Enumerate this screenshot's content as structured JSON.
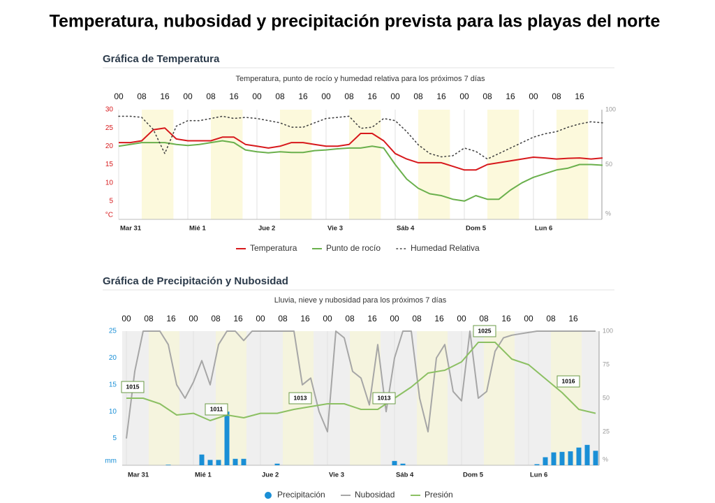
{
  "page_title": "Temperatura, nubosidad  y precipitación prevista para las playas del norte",
  "chart_data": [
    {
      "type": "line",
      "title": "Gráfica de Temperatura",
      "subtitle": "Temperatura, punto de rocío y humedad relativa para los próximos 7 días",
      "xlim": [
        0,
        168
      ],
      "xticks": [
        {
          "value": 0,
          "label": "00"
        },
        {
          "value": 8,
          "label": "08"
        },
        {
          "value": 16,
          "label": "16"
        },
        {
          "value": 24,
          "label": "00"
        },
        {
          "value": 32,
          "label": "08"
        },
        {
          "value": 40,
          "label": "16"
        },
        {
          "value": 48,
          "label": "00"
        },
        {
          "value": 56,
          "label": "08"
        },
        {
          "value": 64,
          "label": "16"
        },
        {
          "value": 72,
          "label": "00"
        },
        {
          "value": 80,
          "label": "08"
        },
        {
          "value": 88,
          "label": "16"
        },
        {
          "value": 96,
          "label": "00"
        },
        {
          "value": 104,
          "label": "08"
        },
        {
          "value": 112,
          "label": "16"
        },
        {
          "value": 120,
          "label": "00"
        },
        {
          "value": 128,
          "label": "08"
        },
        {
          "value": 136,
          "label": "16"
        },
        {
          "value": 144,
          "label": "00"
        },
        {
          "value": 152,
          "label": "08"
        },
        {
          "value": 160,
          "label": "16"
        }
      ],
      "dates": [
        {
          "value": 0,
          "label": "Mar 31"
        },
        {
          "value": 24,
          "label": "Mié 1"
        },
        {
          "value": 48,
          "label": "Jue 2"
        },
        {
          "value": 72,
          "label": "Vie 3"
        },
        {
          "value": 96,
          "label": "Sáb 4"
        },
        {
          "value": 120,
          "label": "Dom 5"
        },
        {
          "value": 144,
          "label": "Lun 6"
        }
      ],
      "ylim": [
        0,
        30
      ],
      "yticks": [
        {
          "value": 0,
          "label": "°C"
        },
        5,
        10,
        15,
        20,
        25,
        30
      ],
      "y2lim": [
        0,
        100
      ],
      "y2ticks": [
        {
          "value": 0,
          "label": "%"
        },
        50,
        100
      ],
      "shaded_bands": [
        [
          8,
          19
        ],
        [
          32,
          43
        ],
        [
          56,
          67
        ],
        [
          80,
          91
        ],
        [
          104,
          115
        ],
        [
          128,
          139
        ],
        [
          152,
          163
        ]
      ],
      "band_color": "#fcf9dc",
      "legend": "bottom",
      "series": [
        {
          "name": "Temperatura",
          "type": "line",
          "color": "#d7191c",
          "x": [
            0,
            4,
            8,
            12,
            16,
            20,
            24,
            28,
            32,
            36,
            40,
            44,
            48,
            52,
            56,
            60,
            64,
            68,
            72,
            76,
            80,
            84,
            88,
            92,
            96,
            100,
            104,
            108,
            112,
            116,
            120,
            124,
            128,
            132,
            136,
            140,
            144,
            148,
            152,
            156,
            160,
            164,
            168
          ],
          "values": [
            21,
            21,
            21.5,
            24.5,
            25,
            22,
            21.5,
            21.5,
            21.5,
            22.5,
            22.5,
            20.5,
            20,
            19.5,
            20,
            21,
            21,
            20.5,
            20,
            20,
            20.5,
            23.5,
            23.5,
            21.5,
            18,
            16.5,
            15.5,
            15.5,
            15.5,
            14.5,
            13.5,
            13.5,
            15,
            15.5,
            16,
            16.5,
            17,
            16.8,
            16.5,
            16.7,
            16.8,
            16.5,
            16.8
          ]
        },
        {
          "name": "Punto de rocío",
          "type": "line",
          "color": "#6ab04c",
          "x": [
            0,
            4,
            8,
            12,
            16,
            20,
            24,
            28,
            32,
            36,
            40,
            44,
            48,
            52,
            56,
            60,
            64,
            68,
            72,
            76,
            80,
            84,
            88,
            92,
            96,
            100,
            104,
            108,
            112,
            116,
            120,
            124,
            128,
            132,
            136,
            140,
            144,
            148,
            152,
            156,
            160,
            164,
            168
          ],
          "values": [
            20,
            20.5,
            21,
            21,
            21,
            20.5,
            20.2,
            20.5,
            21,
            21.5,
            21,
            19,
            18.5,
            18.2,
            18.5,
            18.3,
            18.3,
            18.8,
            19,
            19.3,
            19.5,
            19.5,
            20,
            19.5,
            15,
            11,
            8.5,
            7,
            6.5,
            5.5,
            5,
            6.5,
            5.5,
            5.5,
            8,
            10,
            11.5,
            12.5,
            13.5,
            14,
            15,
            15,
            14.8
          ]
        },
        {
          "name": "Humedad Relativa",
          "type": "line",
          "color": "#444444",
          "dash": "dotted",
          "axis": "y2",
          "x": [
            0,
            4,
            8,
            12,
            16,
            20,
            24,
            28,
            32,
            36,
            40,
            44,
            48,
            52,
            56,
            60,
            64,
            68,
            72,
            76,
            80,
            84,
            88,
            92,
            96,
            100,
            104,
            108,
            112,
            116,
            120,
            124,
            128,
            132,
            136,
            140,
            144,
            148,
            152,
            156,
            160,
            164,
            168
          ],
          "values": [
            94,
            94,
            93,
            82,
            60,
            85,
            90,
            90,
            92,
            94,
            92,
            93,
            92,
            90,
            88,
            84,
            84,
            88,
            92,
            93,
            94,
            83,
            84,
            92,
            90,
            80,
            68,
            60,
            57,
            58,
            65,
            62,
            55,
            60,
            65,
            70,
            75,
            78,
            80,
            84,
            87,
            89,
            88
          ]
        }
      ]
    },
    {
      "type": "combo",
      "title": "Gráfica de Precipitación y Nubosidad",
      "subtitle": "Lluvia, nieve y nubosidad para los próximos 7 días",
      "xlim": [
        0,
        168
      ],
      "xticks": [
        {
          "value": 0,
          "label": "00"
        },
        {
          "value": 8,
          "label": "08"
        },
        {
          "value": 16,
          "label": "16"
        },
        {
          "value": 24,
          "label": "00"
        },
        {
          "value": 32,
          "label": "08"
        },
        {
          "value": 40,
          "label": "16"
        },
        {
          "value": 48,
          "label": "00"
        },
        {
          "value": 56,
          "label": "08"
        },
        {
          "value": 64,
          "label": "16"
        },
        {
          "value": 72,
          "label": "00"
        },
        {
          "value": 80,
          "label": "08"
        },
        {
          "value": 88,
          "label": "16"
        },
        {
          "value": 96,
          "label": "00"
        },
        {
          "value": 104,
          "label": "08"
        },
        {
          "value": 112,
          "label": "16"
        },
        {
          "value": 120,
          "label": "00"
        },
        {
          "value": 128,
          "label": "08"
        },
        {
          "value": 136,
          "label": "16"
        },
        {
          "value": 144,
          "label": "00"
        },
        {
          "value": 152,
          "label": "08"
        },
        {
          "value": 160,
          "label": "16"
        }
      ],
      "dates": [
        {
          "value": 0,
          "label": "Mar 31"
        },
        {
          "value": 24,
          "label": "Mié 1"
        },
        {
          "value": 48,
          "label": "Jue 2"
        },
        {
          "value": 72,
          "label": "Vie 3"
        },
        {
          "value": 96,
          "label": "Sáb 4"
        },
        {
          "value": 120,
          "label": "Dom 5"
        },
        {
          "value": 144,
          "label": "Lun 6"
        }
      ],
      "ylim": [
        0,
        25
      ],
      "yticks": [
        {
          "value": 0,
          "label": "mm"
        },
        5,
        10,
        15,
        20,
        25
      ],
      "y2lim": [
        0,
        100
      ],
      "y2ticks": [
        {
          "value": 0,
          "label": "%"
        },
        25,
        50,
        75,
        100
      ],
      "y3lim": [
        1003,
        1027
      ],
      "shaded_bands": [
        [
          8,
          19
        ],
        [
          32,
          43
        ],
        [
          56,
          67
        ],
        [
          80,
          91
        ],
        [
          104,
          115
        ],
        [
          128,
          139
        ],
        [
          152,
          163
        ]
      ],
      "band_color": "#f5f4de",
      "legend": "bottom",
      "series": [
        {
          "name": "Precipitación",
          "type": "bar",
          "color": "#1a8fd6",
          "x": [
            0,
            3,
            6,
            9,
            12,
            15,
            18,
            21,
            24,
            27,
            30,
            33,
            36,
            39,
            42,
            45,
            48,
            51,
            54,
            57,
            60,
            63,
            66,
            69,
            72,
            75,
            78,
            81,
            84,
            87,
            90,
            93,
            96,
            99,
            102,
            105,
            108,
            111,
            114,
            117,
            120,
            123,
            126,
            129,
            132,
            135,
            138,
            141,
            144,
            147,
            150,
            153,
            156,
            159,
            162,
            165,
            168
          ],
          "values": [
            0,
            0,
            0,
            0,
            0,
            0.1,
            0,
            0,
            0,
            2,
            1,
            1,
            10,
            1.2,
            1.2,
            0,
            0,
            0,
            0.3,
            0,
            0,
            0,
            0,
            0,
            0,
            0,
            0,
            0,
            0,
            0,
            0,
            0,
            0.8,
            0.3,
            0,
            0,
            0,
            0,
            0,
            0,
            0,
            0,
            0,
            0,
            0,
            0,
            0,
            0,
            0,
            0.2,
            1.5,
            2.4,
            2.5,
            2.6,
            3.3,
            3.8,
            2.7
          ]
        },
        {
          "name": "Nubosidad",
          "type": "line",
          "color": "#a6a6a6",
          "axis": "y2",
          "x": [
            0,
            3,
            6,
            9,
            12,
            15,
            18,
            21,
            24,
            27,
            30,
            33,
            36,
            39,
            42,
            45,
            48,
            51,
            54,
            57,
            60,
            63,
            66,
            69,
            72,
            75,
            78,
            81,
            84,
            87,
            90,
            93,
            96,
            99,
            102,
            105,
            108,
            111,
            114,
            117,
            120,
            123,
            126,
            129,
            132,
            135,
            138,
            141,
            144,
            147,
            150,
            153,
            156,
            159,
            162,
            165,
            168
          ],
          "values": [
            20,
            70,
            100,
            100,
            100,
            90,
            60,
            50,
            62,
            78,
            60,
            90,
            100,
            100,
            93,
            100,
            100,
            100,
            100,
            100,
            100,
            60,
            65,
            40,
            25,
            100,
            95,
            70,
            65,
            45,
            90,
            40,
            80,
            100,
            100,
            50,
            25,
            80,
            90,
            55,
            48,
            100,
            50,
            55,
            85,
            95,
            97,
            98,
            99,
            100,
            100,
            100,
            100,
            100,
            100,
            100,
            100
          ]
        },
        {
          "name": "Presión",
          "type": "line",
          "color": "#8cc063",
          "axis": "y3",
          "x": [
            0,
            6,
            12,
            18,
            24,
            30,
            36,
            42,
            48,
            54,
            60,
            66,
            72,
            78,
            84,
            90,
            96,
            102,
            108,
            114,
            120,
            126,
            132,
            138,
            144,
            150,
            156,
            162,
            168
          ],
          "values": [
            1015,
            1015,
            1014,
            1012,
            1012.3,
            1011,
            1012,
            1011.5,
            1012.3,
            1012.3,
            1013,
            1013.5,
            1014,
            1014,
            1013,
            1013,
            1015,
            1017,
            1019.5,
            1020,
            1021.5,
            1025,
            1025,
            1022,
            1021,
            1018.5,
            1016,
            1013,
            1012.3
          ]
        }
      ],
      "annotations": [
        {
          "x": 0,
          "y": 1015
        },
        {
          "x": 30,
          "y": 1011
        },
        {
          "x": 60,
          "y": 1013
        },
        {
          "x": 90,
          "y": 1013
        },
        {
          "x": 126,
          "y": 1025
        },
        {
          "x": 156,
          "y": 1016
        }
      ]
    }
  ]
}
